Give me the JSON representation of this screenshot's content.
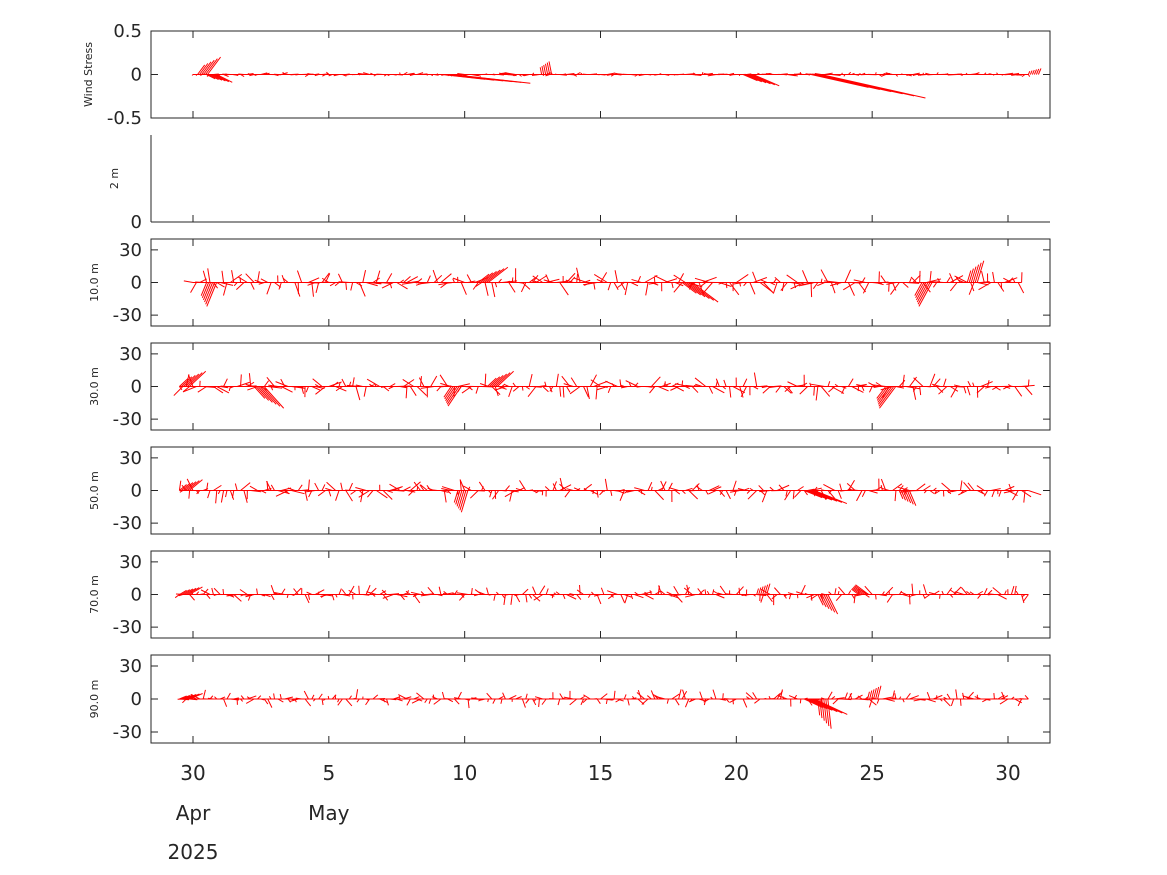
{
  "chart_data": {
    "type": "stick-vector",
    "color": "#ff0000",
    "x_axis": {
      "type": "date",
      "range": [
        "2025-04-29T12:00",
        "2025-05-31T12:00"
      ],
      "ticks": [
        {
          "date": "2025-04-30",
          "label": "30"
        },
        {
          "date": "2025-05-05",
          "label": "5"
        },
        {
          "date": "2025-05-10",
          "label": "10"
        },
        {
          "date": "2025-05-15",
          "label": "15"
        },
        {
          "date": "2025-05-20",
          "label": "20"
        },
        {
          "date": "2025-05-25",
          "label": "25"
        },
        {
          "date": "2025-05-30",
          "label": "30"
        }
      ],
      "month_labels": [
        {
          "date": "2025-04-30",
          "label": "Apr"
        },
        {
          "date": "2025-05-05",
          "label": "May"
        }
      ],
      "year_label": {
        "date": "2025-04-30",
        "label": "2025"
      }
    },
    "panels": [
      {
        "name": "Wind Stress",
        "ylabel": "Wind Stress",
        "ylim": [
          -0.5,
          0.5
        ],
        "yticks": [
          {
            "v": 0.5,
            "label": "0.5"
          },
          {
            "v": 0,
            "label": "0"
          },
          {
            "v": -0.5,
            "label": "-0.5"
          }
        ],
        "x_extent": [
          "2025-04-30",
          "2025-05-30T18:00"
        ],
        "amplitude": 0.08,
        "bursts": [
          {
            "date": "2025-04-30T04:00",
            "u": 0.05,
            "v": 0.2
          },
          {
            "date": "2025-04-30T12:00",
            "u": 0.06,
            "v": -0.09
          },
          {
            "date": "2025-05-11T12:00",
            "u": -0.04,
            "v": 0.02
          },
          {
            "date": "2025-05-12T20:00",
            "u": -0.01,
            "v": 0.15
          },
          {
            "date": "2025-05-09T04:00",
            "u": 0.3,
            "v": -0.1
          },
          {
            "date": "2025-05-20T06:00",
            "u": 0.1,
            "v": -0.13
          },
          {
            "date": "2025-05-22T18:00",
            "u": 0.4,
            "v": -0.27
          },
          {
            "date": "2025-05-30T18:00",
            "u": 0.01,
            "v": 0.07
          }
        ]
      },
      {
        "name": "2 m",
        "ylabel": "2 m",
        "ylim": [
          0,
          1
        ],
        "yticks": [
          {
            "v": 0,
            "label": "0"
          }
        ],
        "empty": true
      },
      {
        "name": "10.0 m",
        "ylabel": "10.0 m",
        "ylim": [
          -40,
          40
        ],
        "yticks": [
          {
            "v": 30,
            "label": "30"
          },
          {
            "v": 0,
            "label": "0"
          },
          {
            "v": -30,
            "label": "-30"
          }
        ],
        "x_extent": [
          "2025-04-30",
          "2025-05-30T12:00"
        ],
        "amplitude": 14,
        "bursts": [
          {
            "date": "2025-04-30T12:00",
            "u": -3,
            "v": -22
          },
          {
            "date": "2025-05-10T12:00",
            "u": 6,
            "v": 14
          },
          {
            "date": "2025-05-18T00:00",
            "u": 8,
            "v": -18
          },
          {
            "date": "2025-05-26T20:00",
            "u": -4,
            "v": -22
          },
          {
            "date": "2025-05-28T12:00",
            "u": 2,
            "v": 20
          }
        ]
      },
      {
        "name": "30.0 m",
        "ylabel": "30.0 m",
        "ylim": [
          -40,
          40
        ],
        "yticks": [
          {
            "v": 30,
            "label": "30"
          },
          {
            "v": 0,
            "label": "0"
          },
          {
            "v": -30,
            "label": "-30"
          }
        ],
        "x_extent": [
          "2025-04-29T12:00",
          "2025-05-30T18:00"
        ],
        "amplitude": 13,
        "bursts": [
          {
            "date": "2025-04-29T12:00",
            "u": 5,
            "v": 14
          },
          {
            "date": "2025-05-02T06:00",
            "u": 6,
            "v": -20
          },
          {
            "date": "2025-05-09T12:00",
            "u": -4,
            "v": -18
          },
          {
            "date": "2025-05-10T20:00",
            "u": 5,
            "v": 14
          },
          {
            "date": "2025-05-25T12:00",
            "u": -5,
            "v": -20
          }
        ]
      },
      {
        "name": "50.0 m",
        "ylabel": "50.0 m",
        "ylim": [
          -40,
          40
        ],
        "yticks": [
          {
            "v": 30,
            "label": "30"
          },
          {
            "v": 0,
            "label": "0"
          },
          {
            "v": -30,
            "label": "-30"
          }
        ],
        "x_extent": [
          "2025-04-29T12:00",
          "2025-05-30T18:00"
        ],
        "amplitude": 12,
        "bursts": [
          {
            "date": "2025-04-29T12:00",
            "u": 4,
            "v": 10
          },
          {
            "date": "2025-05-09T18:00",
            "u": -2,
            "v": -20
          },
          {
            "date": "2025-05-22T12:00",
            "u": 10,
            "v": -12
          },
          {
            "date": "2025-05-26T00:00",
            "u": 2,
            "v": -14
          }
        ]
      },
      {
        "name": "70.0 m",
        "ylabel": "70.0 m",
        "ylim": [
          -40,
          40
        ],
        "yticks": [
          {
            "v": 30,
            "label": "30"
          },
          {
            "v": 0,
            "label": "0"
          },
          {
            "v": -30,
            "label": "-30"
          }
        ],
        "x_extent": [
          "2025-04-29T12:00",
          "2025-05-30T18:00"
        ],
        "amplitude": 10,
        "bursts": [
          {
            "date": "2025-04-29T12:00",
            "u": 4,
            "v": 7
          },
          {
            "date": "2025-05-23T00:00",
            "u": 3,
            "v": -18
          },
          {
            "date": "2025-05-24T12:00",
            "u": -4,
            "v": 9
          },
          {
            "date": "2025-05-20T18:00",
            "u": 1,
            "v": 10
          }
        ]
      },
      {
        "name": "90.0 m",
        "ylabel": "90.0 m",
        "ylim": [
          -40,
          40
        ],
        "yticks": [
          {
            "v": 30,
            "label": "30"
          },
          {
            "v": 0,
            "label": "0"
          },
          {
            "v": -30,
            "label": "-30"
          }
        ],
        "x_extent": [
          "2025-04-29T12:00",
          "2025-05-30T18:00"
        ],
        "amplitude": 9,
        "bursts": [
          {
            "date": "2025-04-29T12:00",
            "u": 4,
            "v": 5
          },
          {
            "date": "2025-05-23T00:00",
            "u": 1,
            "v": -27
          },
          {
            "date": "2025-05-22T12:00",
            "u": 10,
            "v": -14
          },
          {
            "date": "2025-05-24T20:00",
            "u": 1,
            "v": 12
          }
        ]
      }
    ]
  }
}
